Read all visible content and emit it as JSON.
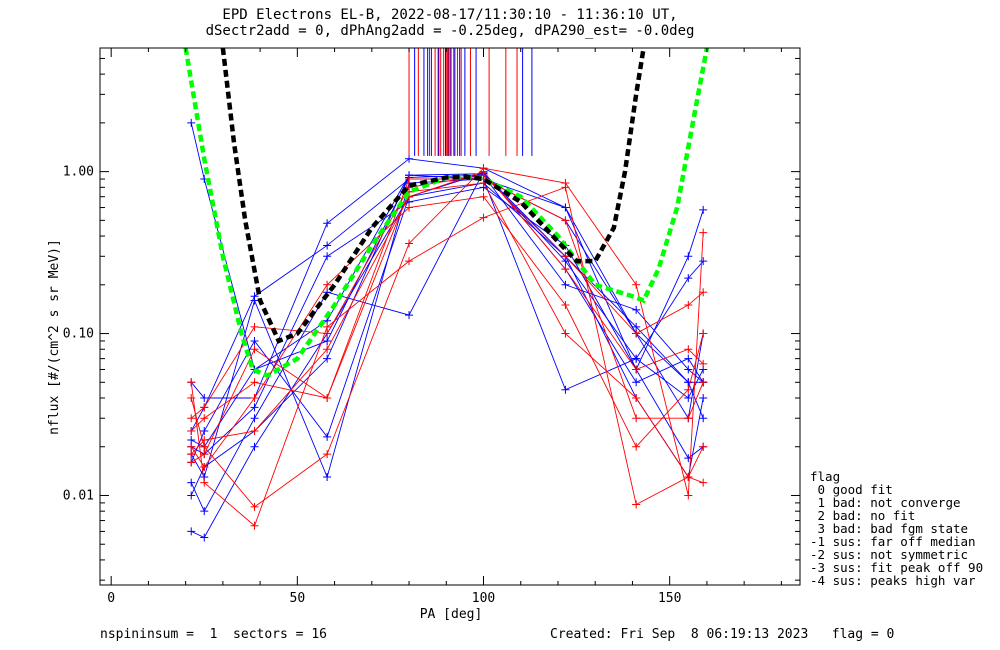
{
  "header": {
    "title_line1": "EPD Electrons EL-B, 2022-08-17/11:30:10 - 11:36:10 UT,",
    "title_line2": "dSectr2add = 0, dPhAng2add = -0.25deg, dPA290_est=  -0.0deg"
  },
  "footer": {
    "left": "nspininsum =  1  sectors = 16",
    "right": "Created: Fri Sep  8 06:19:13 2023   flag = 0"
  },
  "legend": {
    "title": "flag",
    "items": [
      " 0 good fit",
      " 1 bad: not converge",
      " 2 bad: no fit",
      " 3 bad: bad fgm state",
      "-1 sus: far off median",
      "-2 sus: not symmetric",
      "-3 sus: fit peak off 90",
      "-4 sus: peaks high var"
    ]
  },
  "colors": {
    "red": "#ff0000",
    "blue": "#0000ff",
    "green": "#00ff00",
    "black": "#000000"
  },
  "chart_data": {
    "type": "line",
    "xlabel": "PA [deg]",
    "ylabel": "nflux [#/(cm^2 s sr MeV)]",
    "xlim": [
      -3,
      185
    ],
    "ylim": [
      0.0028,
      5.8
    ],
    "yscale": "log",
    "xticks": [
      0,
      50,
      100,
      150
    ],
    "yticks": [
      0.01,
      0.1,
      1.0
    ],
    "ytick_labels": [
      "0.01",
      "0.10",
      "1.00"
    ],
    "x_sectors": [
      21.5,
      25,
      38.5,
      58,
      80,
      100,
      122,
      141,
      155,
      159
    ],
    "series_sample": [
      {
        "color": "blue",
        "values": [
          2.0,
          0.9,
          0.06,
          0.12,
          0.95,
          0.9,
          0.5,
          0.1,
          0.05,
          0.03
        ]
      },
      {
        "color": "blue",
        "values": [
          0.05,
          0.04,
          0.04,
          0.48,
          1.2,
          1.05,
          0.6,
          0.06,
          0.3,
          0.58
        ]
      },
      {
        "color": "blue",
        "values": [
          0.025,
          0.035,
          0.17,
          0.35,
          0.9,
          0.9,
          0.045,
          0.07,
          0.22,
          0.28
        ]
      },
      {
        "color": "blue",
        "values": [
          0.006,
          0.0055,
          0.02,
          0.1,
          0.7,
          0.85,
          0.3,
          0.04,
          0.013,
          0.04
        ]
      },
      {
        "color": "blue",
        "values": [
          0.012,
          0.008,
          0.03,
          0.18,
          0.13,
          1.0,
          0.25,
          0.05,
          0.07,
          0.05
        ]
      },
      {
        "color": "blue",
        "values": [
          0.018,
          0.013,
          0.16,
          0.013,
          0.85,
          0.9,
          0.6,
          0.1,
          0.03,
          0.1
        ]
      },
      {
        "color": "blue",
        "values": [
          0.022,
          0.02,
          0.06,
          0.09,
          0.92,
          0.95,
          0.2,
          0.14,
          0.06,
          0.05
        ]
      },
      {
        "color": "blue",
        "values": [
          0.01,
          0.015,
          0.025,
          0.07,
          0.95,
          0.97,
          0.28,
          0.07,
          0.04,
          0.06
        ]
      },
      {
        "color": "blue",
        "values": [
          0.016,
          0.025,
          0.09,
          0.023,
          0.7,
          0.98,
          0.3,
          0.11,
          0.05,
          0.05
        ]
      },
      {
        "color": "blue",
        "values": [
          0.02,
          0.018,
          0.035,
          0.3,
          0.65,
          0.8,
          0.35,
          0.06,
          0.017,
          0.02
        ]
      },
      {
        "color": "red",
        "values": [
          0.05,
          0.012,
          0.0065,
          0.11,
          0.28,
          0.52,
          0.8,
          0.0088,
          0.013,
          0.02
        ]
      },
      {
        "color": "red",
        "values": [
          0.04,
          0.02,
          0.0085,
          0.018,
          0.36,
          1.05,
          0.85,
          0.2,
          0.01,
          0.42
        ]
      },
      {
        "color": "red",
        "values": [
          0.03,
          0.035,
          0.11,
          0.1,
          0.8,
          0.95,
          0.3,
          0.1,
          0.15,
          0.18
        ]
      },
      {
        "color": "red",
        "values": [
          0.016,
          0.018,
          0.08,
          0.04,
          0.75,
          0.85,
          0.1,
          0.04,
          0.013,
          0.012
        ]
      },
      {
        "color": "red",
        "values": [
          0.02,
          0.015,
          0.04,
          0.2,
          0.6,
          0.7,
          0.15,
          0.02,
          0.045,
          0.1
        ]
      },
      {
        "color": "red",
        "values": [
          0.025,
          0.03,
          0.05,
          0.04,
          0.9,
          0.9,
          0.5,
          0.03,
          0.03,
          0.05
        ]
      },
      {
        "color": "red",
        "values": [
          0.018,
          0.022,
          0.025,
          0.08,
          0.7,
          1.0,
          0.25,
          0.06,
          0.08,
          0.065
        ]
      }
    ],
    "fit_curves": [
      {
        "color": "green",
        "style": "dashed",
        "description": "green dashed fit",
        "x": [
          20,
          25,
          30,
          35,
          38,
          42,
          50,
          60,
          70,
          80,
          90,
          95,
          100,
          110,
          120,
          130,
          140,
          143,
          147,
          152,
          157,
          160
        ],
        "y": [
          6.0,
          1.2,
          0.3,
          0.1,
          0.06,
          0.055,
          0.07,
          0.15,
          0.35,
          0.75,
          0.92,
          0.93,
          0.9,
          0.7,
          0.4,
          0.2,
          0.17,
          0.16,
          0.25,
          0.6,
          2.5,
          6.0
        ]
      },
      {
        "color": "black",
        "style": "dashed",
        "x": [
          30,
          33,
          36,
          40,
          45,
          50,
          60,
          70,
          80,
          90,
          95,
          100,
          110,
          120,
          125,
          130,
          135,
          138,
          141,
          143
        ],
        "y": [
          6.0,
          1.5,
          0.5,
          0.16,
          0.09,
          0.1,
          0.2,
          0.45,
          0.82,
          0.92,
          0.93,
          0.9,
          0.65,
          0.37,
          0.28,
          0.28,
          0.45,
          1.0,
          3.0,
          6.0
        ]
      }
    ],
    "vertical_markers": [
      {
        "color": "red",
        "x": [
          80,
          82.5,
          85.5,
          87,
          87.8,
          88.5,
          89.3,
          90,
          90.6,
          91.3,
          92,
          93,
          94,
          96.5,
          101.5,
          106,
          109
        ]
      },
      {
        "color": "blue",
        "x": [
          81.5,
          84,
          85,
          86,
          88,
          89.8,
          90.4,
          91,
          92.3,
          93.6,
          95,
          98,
          110.5,
          113
        ]
      }
    ]
  }
}
